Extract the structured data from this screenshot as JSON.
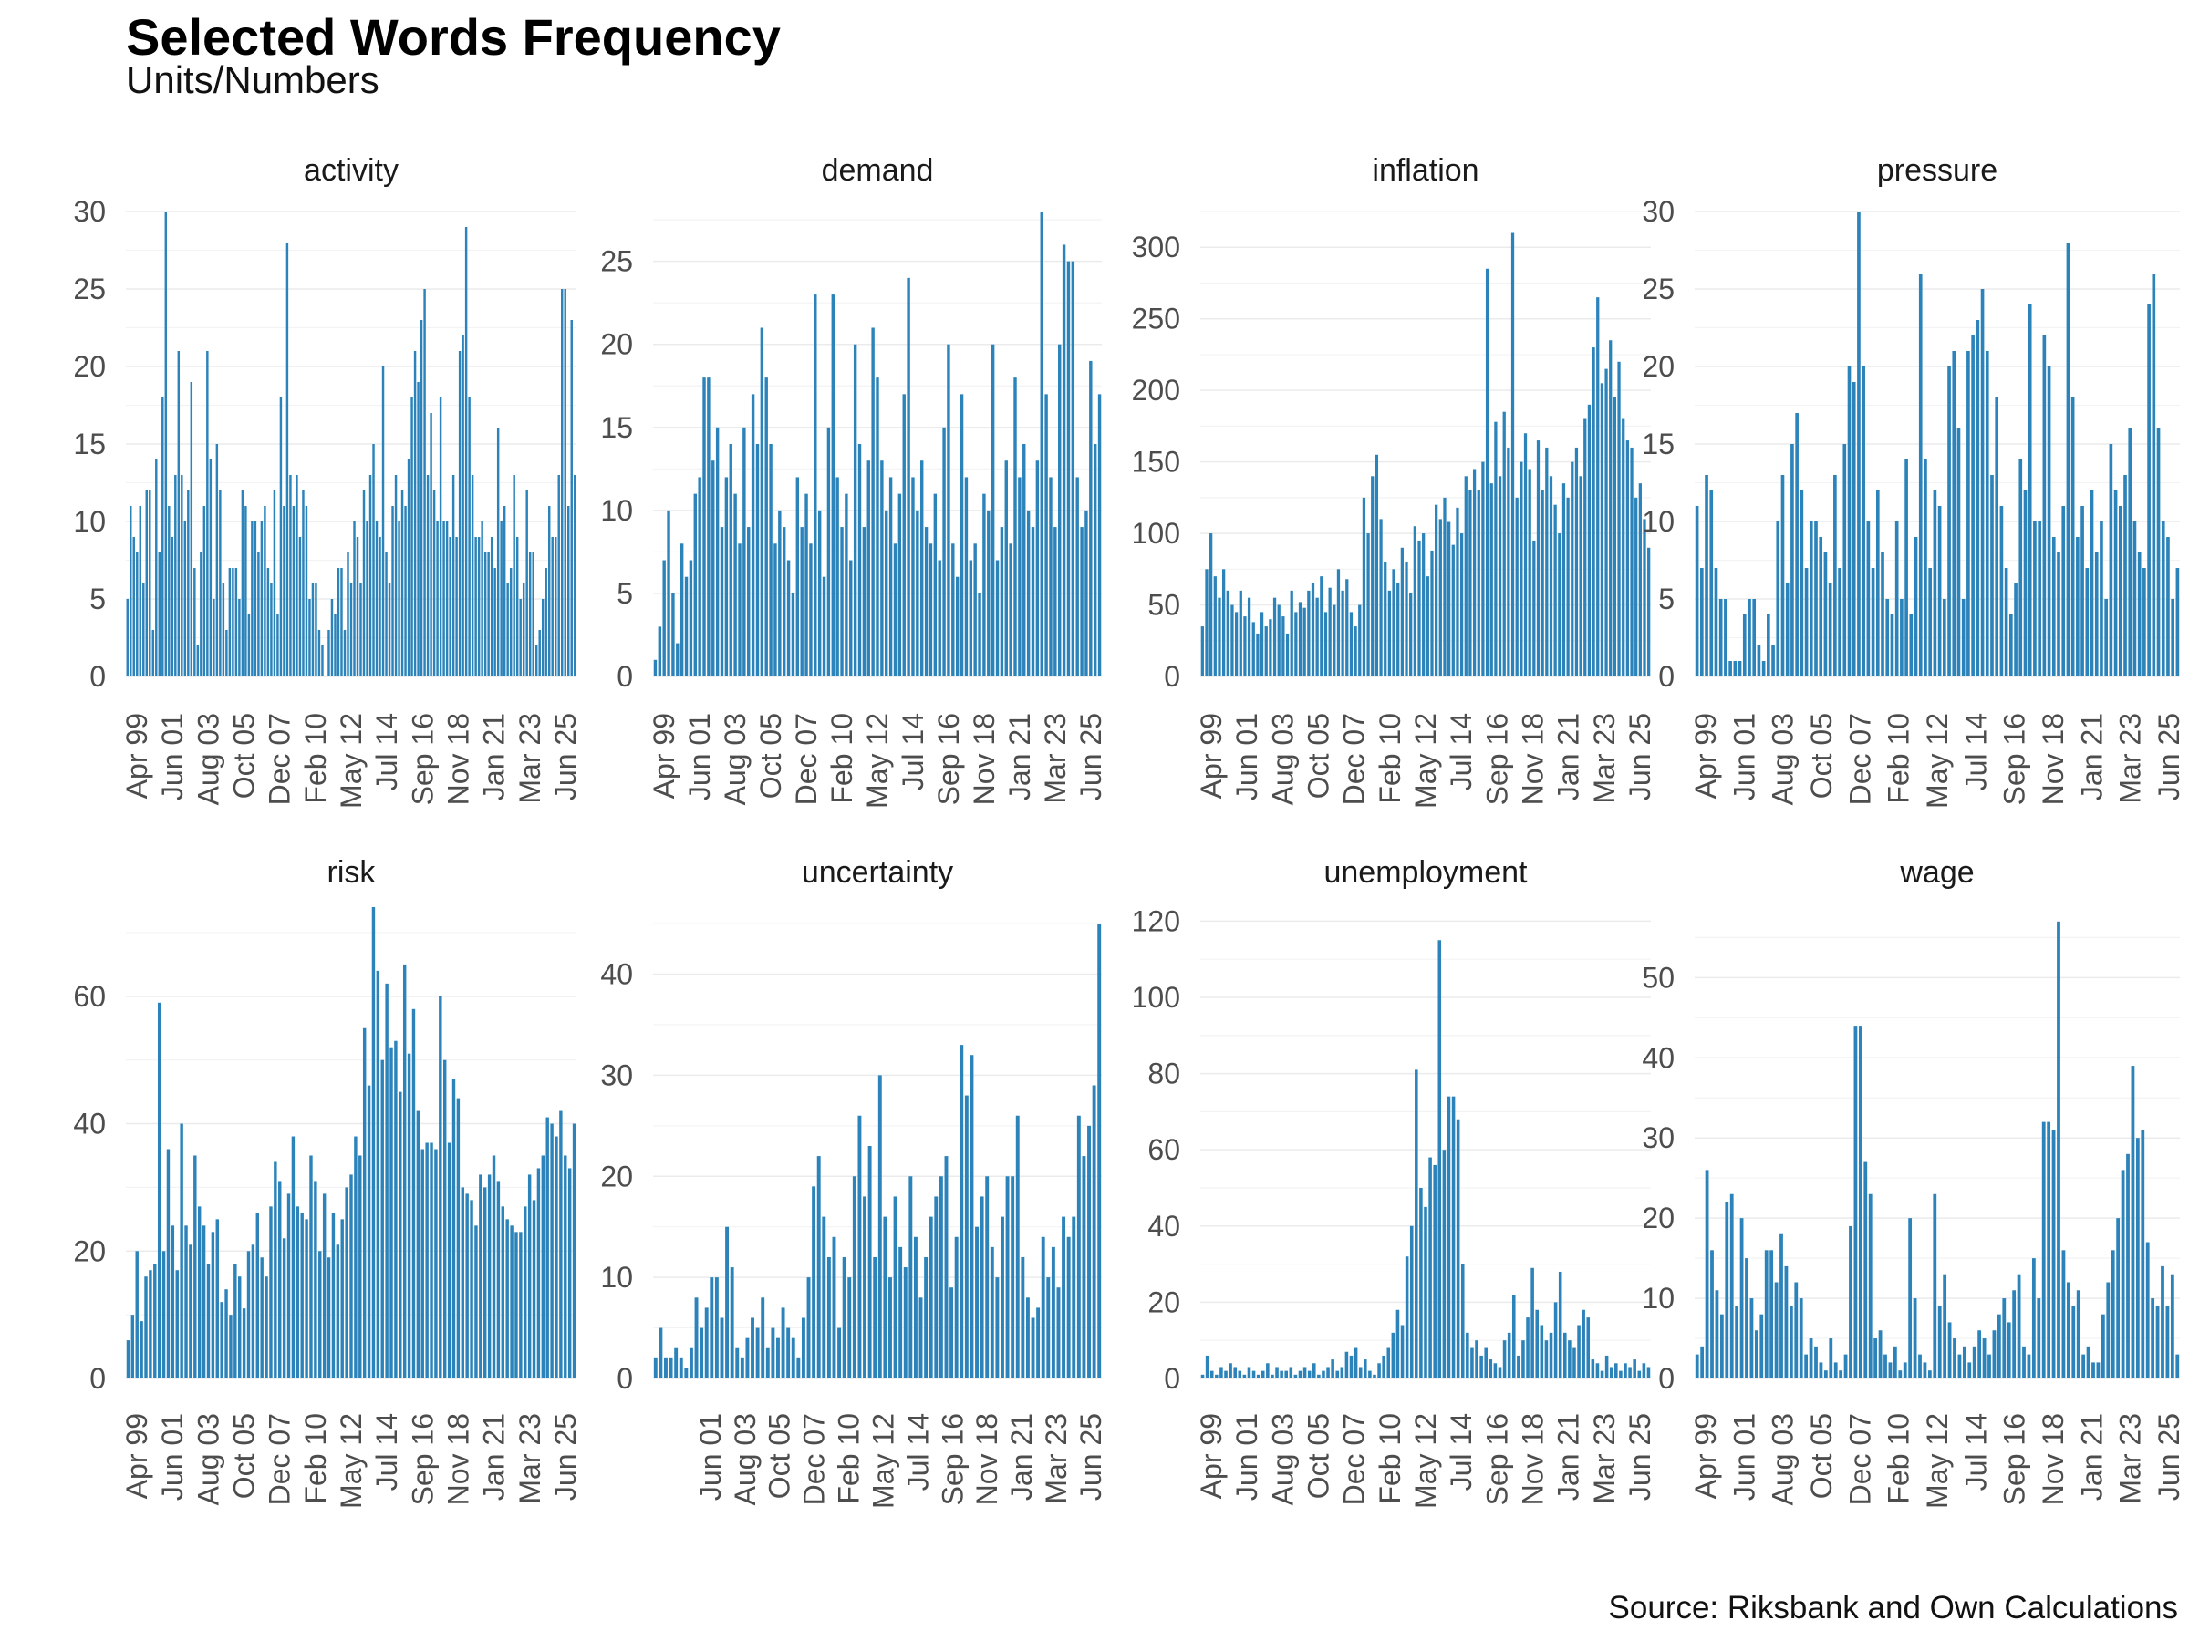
{
  "title": "Selected Words Frequency",
  "subtitle": "Units/Numbers",
  "caption": "Source: Riksbank and Own Calculations",
  "colors": {
    "bar": "#2b83ba",
    "grid": "#ebebeb",
    "text": "#4d4d4d"
  },
  "chart_data": [
    {
      "type": "bar",
      "title": "activity",
      "ylim": [
        0,
        30
      ],
      "yticks": [
        0,
        5,
        10,
        15,
        20,
        25,
        30
      ],
      "xticks": [
        "Apr 99",
        "Jun 01",
        "Aug 03",
        "Oct 05",
        "Dec 07",
        "Feb 10",
        "May 12",
        "Jul 14",
        "Sep 16",
        "Nov 18",
        "Jan 21",
        "Mar 23",
        "Jun 25"
      ],
      "values": [
        5,
        11,
        9,
        8,
        11,
        6,
        12,
        12,
        3,
        14,
        8,
        18,
        30,
        11,
        9,
        13,
        21,
        13,
        10,
        12,
        19,
        7,
        2,
        8,
        11,
        21,
        14,
        5,
        15,
        12,
        6,
        3,
        7,
        7,
        7,
        5,
        12,
        11,
        4,
        10,
        10,
        8,
        10,
        11,
        7,
        6,
        12,
        4,
        18,
        11,
        28,
        13,
        11,
        13,
        9,
        12,
        11,
        5,
        6,
        6,
        3,
        2,
        0,
        3,
        5,
        4,
        7,
        7,
        3,
        8,
        6,
        10,
        9,
        6,
        12,
        10,
        13,
        15,
        10,
        9,
        20,
        8,
        6,
        11,
        13,
        10,
        12,
        11,
        14,
        18,
        21,
        19,
        23,
        25,
        13,
        17,
        12,
        10,
        18,
        10,
        10,
        9,
        13,
        9,
        21,
        22,
        29,
        18,
        13,
        9,
        9,
        10,
        8,
        8,
        9,
        7,
        16,
        10,
        11,
        6,
        7,
        13,
        9,
        5,
        6,
        12,
        8,
        8,
        2,
        3,
        5,
        7,
        11,
        9,
        9,
        13,
        25,
        25,
        11,
        23,
        13
      ]
    },
    {
      "type": "bar",
      "title": "demand",
      "ylim": [
        0,
        28
      ],
      "yticks": [
        0,
        5,
        10,
        15,
        20,
        25
      ],
      "xticks": [
        "Apr 99",
        "Jun 01",
        "Aug 03",
        "Oct 05",
        "Dec 07",
        "Feb 10",
        "May 12",
        "Jul 14",
        "Sep 16",
        "Nov 18",
        "Jan 21",
        "Mar 23",
        "Jun 25"
      ],
      "values": [
        1,
        3,
        7,
        10,
        5,
        2,
        8,
        6,
        7,
        11,
        12,
        18,
        18,
        13,
        15,
        9,
        12,
        14,
        11,
        8,
        15,
        9,
        17,
        14,
        21,
        18,
        14,
        8,
        10,
        9,
        7,
        5,
        12,
        9,
        11,
        8,
        23,
        10,
        6,
        15,
        23,
        12,
        9,
        11,
        7,
        20,
        14,
        9,
        13,
        21,
        18,
        13,
        10,
        12,
        8,
        11,
        17,
        24,
        12,
        10,
        13,
        9,
        8,
        11,
        7,
        15,
        20,
        8,
        6,
        17,
        12,
        7,
        8,
        5,
        11,
        10,
        20,
        7,
        9,
        13,
        8,
        18,
        12,
        14,
        10,
        9,
        13,
        28,
        17,
        12,
        9,
        20,
        26,
        25,
        25,
        12,
        9,
        10,
        19,
        14,
        17
      ]
    },
    {
      "type": "bar",
      "title": "inflation",
      "ylim": [
        0,
        325
      ],
      "yticks": [
        0,
        50,
        100,
        150,
        200,
        250,
        300
      ],
      "xticks": [
        "Apr 99",
        "Jun 01",
        "Aug 03",
        "Oct 05",
        "Dec 07",
        "Feb 10",
        "May 12",
        "Jul 14",
        "Sep 16",
        "Nov 18",
        "Jan 21",
        "Mar 23",
        "Jun 25"
      ],
      "values": [
        35,
        75,
        100,
        70,
        55,
        75,
        60,
        50,
        45,
        60,
        42,
        55,
        38,
        30,
        45,
        35,
        40,
        55,
        50,
        42,
        30,
        60,
        45,
        52,
        48,
        60,
        65,
        55,
        70,
        45,
        62,
        50,
        75,
        60,
        68,
        45,
        35,
        50,
        125,
        100,
        140,
        155,
        110,
        80,
        60,
        75,
        65,
        90,
        80,
        58,
        105,
        95,
        100,
        70,
        88,
        120,
        110,
        125,
        108,
        92,
        118,
        100,
        140,
        130,
        145,
        130,
        150,
        285,
        135,
        178,
        140,
        185,
        160,
        310,
        125,
        150,
        170,
        145,
        95,
        165,
        130,
        160,
        140,
        120,
        100,
        135,
        125,
        150,
        160,
        140,
        180,
        190,
        230,
        265,
        205,
        215,
        235,
        195,
        220,
        180,
        165,
        160,
        125,
        135,
        110,
        90
      ]
    },
    {
      "type": "bar",
      "title": "pressure",
      "ylim": [
        0,
        30
      ],
      "yticks": [
        0,
        5,
        10,
        15,
        20,
        25,
        30
      ],
      "xticks": [
        "Apr 99",
        "Jun 01",
        "Aug 03",
        "Oct 05",
        "Dec 07",
        "Feb 10",
        "May 12",
        "Jul 14",
        "Sep 16",
        "Nov 18",
        "Jan 21",
        "Mar 23",
        "Jun 25"
      ],
      "values": [
        11,
        7,
        13,
        12,
        7,
        5,
        5,
        1,
        1,
        1,
        4,
        5,
        5,
        2,
        1,
        4,
        2,
        10,
        13,
        6,
        15,
        17,
        12,
        7,
        10,
        10,
        9,
        8,
        6,
        13,
        7,
        15,
        20,
        19,
        30,
        20,
        10,
        7,
        12,
        8,
        5,
        4,
        10,
        5,
        14,
        4,
        9,
        26,
        14,
        7,
        12,
        11,
        5,
        20,
        21,
        16,
        5,
        21,
        22,
        23,
        25,
        21,
        13,
        18,
        11,
        7,
        4,
        6,
        14,
        12,
        24,
        10,
        10,
        22,
        20,
        9,
        8,
        11,
        28,
        18,
        9,
        11,
        7,
        12,
        8,
        10,
        5,
        15,
        12,
        11,
        13,
        16,
        10,
        8,
        7,
        24,
        26,
        16,
        10,
        9,
        5,
        7
      ]
    },
    {
      "type": "bar",
      "title": "risk",
      "ylim": [
        0,
        73
      ],
      "yticks": [
        0,
        20,
        40,
        60
      ],
      "xticks": [
        "Apr 99",
        "Jun 01",
        "Aug 03",
        "Oct 05",
        "Dec 07",
        "Feb 10",
        "May 12",
        "Jul 14",
        "Sep 16",
        "Nov 18",
        "Jan 21",
        "Mar 23",
        "Jun 25"
      ],
      "values": [
        6,
        10,
        20,
        9,
        16,
        17,
        18,
        59,
        20,
        36,
        24,
        17,
        40,
        24,
        21,
        35,
        27,
        24,
        18,
        23,
        25,
        12,
        14,
        10,
        18,
        16,
        11,
        20,
        21,
        26,
        19,
        16,
        27,
        34,
        31,
        22,
        29,
        38,
        27,
        26,
        25,
        35,
        31,
        20,
        29,
        19,
        26,
        21,
        25,
        30,
        32,
        38,
        35,
        55,
        46,
        74,
        64,
        50,
        62,
        52,
        53,
        45,
        65,
        51,
        58,
        42,
        36,
        37,
        37,
        36,
        60,
        50,
        37,
        47,
        44,
        30,
        29,
        28,
        24,
        32,
        30,
        32,
        35,
        31,
        27,
        25,
        24,
        23,
        23,
        27,
        32,
        28,
        33,
        35,
        41,
        40,
        38,
        42,
        35,
        33,
        40
      ]
    },
    {
      "type": "bar",
      "title": "uncertainty",
      "ylim": [
        0,
        46
      ],
      "yticks": [
        0,
        10,
        20,
        30,
        40
      ],
      "xticks": [
        "Jun 01",
        "Aug 03",
        "Oct 05",
        "Dec 07",
        "Feb 10",
        "May 12",
        "Jul 14",
        "Sep 16",
        "Nov 18",
        "Jan 21",
        "Mar 23",
        "Jun 25"
      ],
      "values": [
        2,
        5,
        2,
        2,
        3,
        2,
        1,
        3,
        8,
        5,
        7,
        10,
        10,
        6,
        15,
        11,
        3,
        2,
        4,
        6,
        5,
        8,
        3,
        5,
        4,
        7,
        5,
        4,
        2,
        6,
        10,
        19,
        22,
        16,
        12,
        14,
        5,
        12,
        10,
        20,
        26,
        18,
        23,
        12,
        30,
        16,
        10,
        18,
        13,
        11,
        20,
        14,
        8,
        12,
        16,
        18,
        20,
        22,
        9,
        14,
        33,
        28,
        32,
        15,
        18,
        20,
        13,
        10,
        16,
        20,
        20,
        26,
        12,
        8,
        6,
        7,
        14,
        10,
        13,
        9,
        16,
        14,
        16,
        26,
        22,
        25,
        29,
        45
      ]
    },
    {
      "type": "bar",
      "title": "unemployment",
      "ylim": [
        0,
        122
      ],
      "yticks": [
        0,
        20,
        40,
        60,
        80,
        100,
        120
      ],
      "xticks": [
        "Apr 99",
        "Jun 01",
        "Aug 03",
        "Oct 05",
        "Dec 07",
        "Feb 10",
        "May 12",
        "Jul 14",
        "Sep 16",
        "Nov 18",
        "Jan 21",
        "Mar 23",
        "Jun 25"
      ],
      "values": [
        1,
        6,
        2,
        1,
        3,
        2,
        4,
        3,
        2,
        1,
        3,
        2,
        1,
        2,
        4,
        1,
        3,
        2,
        2,
        3,
        1,
        2,
        3,
        2,
        4,
        1,
        2,
        3,
        5,
        2,
        3,
        7,
        6,
        8,
        3,
        5,
        2,
        1,
        4,
        6,
        8,
        12,
        18,
        14,
        32,
        40,
        81,
        50,
        45,
        58,
        56,
        115,
        60,
        74,
        74,
        68,
        30,
        12,
        8,
        10,
        6,
        8,
        5,
        4,
        3,
        10,
        12,
        22,
        6,
        10,
        16,
        29,
        18,
        14,
        10,
        12,
        20,
        28,
        12,
        10,
        8,
        14,
        18,
        16,
        5,
        4,
        2,
        6,
        3,
        4,
        2,
        4,
        3,
        5,
        2,
        4,
        3
      ]
    },
    {
      "type": "bar",
      "title": "wage",
      "ylim": [
        0,
        58
      ],
      "yticks": [
        0,
        10,
        20,
        30,
        40,
        50
      ],
      "xticks": [
        "Apr 99",
        "Jun 01",
        "Aug 03",
        "Oct 05",
        "Dec 07",
        "Feb 10",
        "May 12",
        "Jul 14",
        "Sep 16",
        "Nov 18",
        "Jan 21",
        "Mar 23",
        "Jun 25"
      ],
      "values": [
        3,
        4,
        26,
        16,
        11,
        8,
        22,
        23,
        9,
        20,
        15,
        10,
        6,
        8,
        16,
        16,
        12,
        18,
        14,
        9,
        12,
        10,
        3,
        5,
        4,
        2,
        1,
        5,
        2,
        1,
        3,
        19,
        44,
        44,
        27,
        23,
        5,
        6,
        3,
        2,
        4,
        1,
        2,
        20,
        10,
        3,
        2,
        1,
        23,
        9,
        13,
        7,
        5,
        3,
        4,
        2,
        4,
        6,
        5,
        3,
        6,
        8,
        10,
        7,
        11,
        13,
        4,
        3,
        15,
        10,
        32,
        32,
        31,
        57,
        16,
        12,
        9,
        11,
        3,
        4,
        2,
        2,
        8,
        12,
        16,
        20,
        26,
        28,
        39,
        30,
        31,
        17,
        10,
        9,
        14,
        9,
        13,
        3
      ]
    }
  ]
}
